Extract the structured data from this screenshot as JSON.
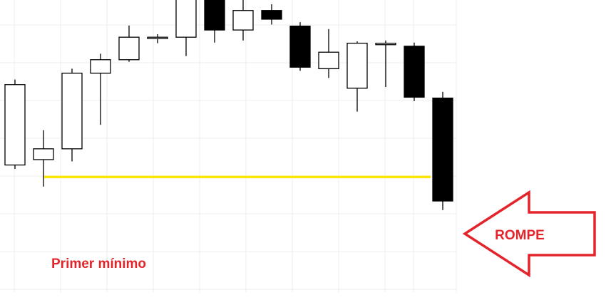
{
  "colors": {
    "up_fill": "#ffffff",
    "down_fill": "#000000",
    "candle_stroke": "#000000",
    "grid": "#ececec",
    "support_line": "#ffe600",
    "annotation": "#e3242b"
  },
  "annotations": {
    "support_label": "Primer mínimo",
    "break_label": "ROMPE",
    "arrow_icon": "left-arrow-outline-icon"
  },
  "chart_data": {
    "type": "candlestick",
    "title": "",
    "xlabel": "",
    "ylabel": "",
    "grid": true,
    "legend": "none",
    "ylim": [
      0,
      100
    ],
    "candles": [
      {
        "open": 45.0,
        "high": 73.5,
        "low": 43.7,
        "close": 71.8
      },
      {
        "open": 46.8,
        "high": 56.6,
        "low": 37.8,
        "close": 50.4
      },
      {
        "open": 50.4,
        "high": 77.1,
        "low": 46.2,
        "close": 75.6
      },
      {
        "open": 75.6,
        "high": 82.1,
        "low": 58.4,
        "close": 80.1
      },
      {
        "open": 80.1,
        "high": 91.5,
        "low": 79.4,
        "close": 87.6
      },
      {
        "open": 87.3,
        "high": 88.6,
        "low": 85.6,
        "close": 87.6
      },
      {
        "open": 87.6,
        "high": 105.3,
        "low": 81.3,
        "close": 104.3
      },
      {
        "open": 103.3,
        "high": 104.0,
        "low": 85.8,
        "close": 90.0
      },
      {
        "open": 90.0,
        "high": 100.9,
        "low": 86.5,
        "close": 96.5
      },
      {
        "open": 96.5,
        "high": 98.6,
        "low": 91.8,
        "close": 93.6
      },
      {
        "open": 91.3,
        "high": 92.6,
        "low": 76.4,
        "close": 77.6
      },
      {
        "open": 77.1,
        "high": 90.3,
        "low": 74.0,
        "close": 82.6
      },
      {
        "open": 70.6,
        "high": 86.2,
        "low": 62.8,
        "close": 85.6
      },
      {
        "open": 85.1,
        "high": 86.5,
        "low": 71.0,
        "close": 85.6
      },
      {
        "open": 84.6,
        "high": 85.8,
        "low": 66.3,
        "close": 67.6
      },
      {
        "open": 67.3,
        "high": 69.4,
        "low": 30.0,
        "close": 33.0
      }
    ],
    "support_level": 41.0
  }
}
